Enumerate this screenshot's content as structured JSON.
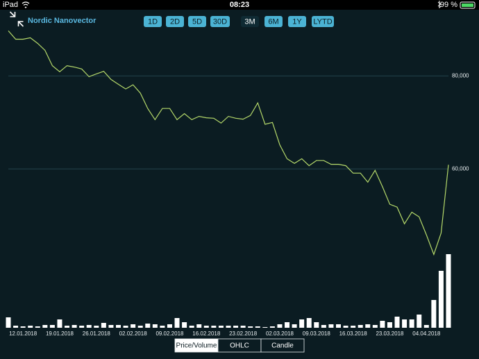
{
  "status_bar": {
    "device": "iPad",
    "time": "08:23",
    "battery": "99 %"
  },
  "header": {
    "title": "Nordic Nanovector"
  },
  "period_buttons": {
    "items": [
      "1D",
      "2D",
      "5D",
      "30D",
      "3M",
      "6M",
      "1Y",
      "LYTD"
    ],
    "selected": "3M"
  },
  "chart_data": {
    "type": "line",
    "categories": [
      null,
      null,
      "12.01.2018",
      null,
      null,
      null,
      null,
      "19.01.2018",
      null,
      null,
      null,
      null,
      "26.01.2018",
      null,
      null,
      null,
      null,
      "02.02.2018",
      null,
      null,
      null,
      null,
      "09.02.2018",
      null,
      null,
      null,
      null,
      "16.02.2018",
      null,
      null,
      null,
      null,
      "23.02.2018",
      null,
      null,
      null,
      null,
      "02.03.2018",
      null,
      null,
      null,
      null,
      "09.03.2018",
      null,
      null,
      null,
      null,
      "16.03.2018",
      null,
      null,
      null,
      null,
      "23.03.2018",
      null,
      null,
      null,
      null,
      "04.04.2018",
      null,
      null,
      null
    ],
    "series": [
      {
        "name": "Price",
        "color": "#b5d96a",
        "values": [
          89700,
          87900,
          87900,
          88200,
          87000,
          85500,
          82200,
          80900,
          82200,
          81900,
          81500,
          79850,
          80450,
          81000,
          79250,
          78200,
          77200,
          78100,
          76300,
          73000,
          70600,
          73000,
          73000,
          70600,
          71900,
          70600,
          71300,
          71000,
          70900,
          69850,
          71300,
          70900,
          70700,
          71500,
          74200,
          69600,
          70000,
          65200,
          62200,
          61200,
          62200,
          60700,
          61800,
          61800,
          61000,
          61000,
          60700,
          59100,
          59100,
          57150,
          59700,
          56200,
          52400,
          51800,
          48200,
          50700,
          49700,
          45800,
          41600,
          46200,
          60900
        ]
      },
      {
        "name": "Volume",
        "color": "#ffffff",
        "values": [
          15,
          3,
          2,
          3,
          2,
          4,
          4,
          12,
          3,
          4,
          3,
          4,
          3,
          7,
          4,
          4,
          3,
          5,
          3,
          6,
          5,
          3,
          5,
          14,
          8,
          3,
          5,
          3,
          3,
          3,
          3,
          3,
          3,
          2,
          2,
          1,
          2,
          5,
          8,
          5,
          12,
          14,
          8,
          4,
          5,
          5,
          3,
          3,
          4,
          5,
          4,
          10,
          8,
          16,
          12,
          12,
          19,
          4,
          40,
          82,
          106
        ]
      }
    ],
    "ylim": [
      26000,
      92000
    ],
    "yticks": [
      {
        "value": 60000,
        "label": "60,000"
      },
      {
        "value": 80000,
        "label": "80,000"
      }
    ],
    "grid": true
  },
  "view_tabs": {
    "items": [
      "Price/Volume",
      "OHLC",
      "Candle"
    ],
    "selected": "Price/Volume"
  }
}
